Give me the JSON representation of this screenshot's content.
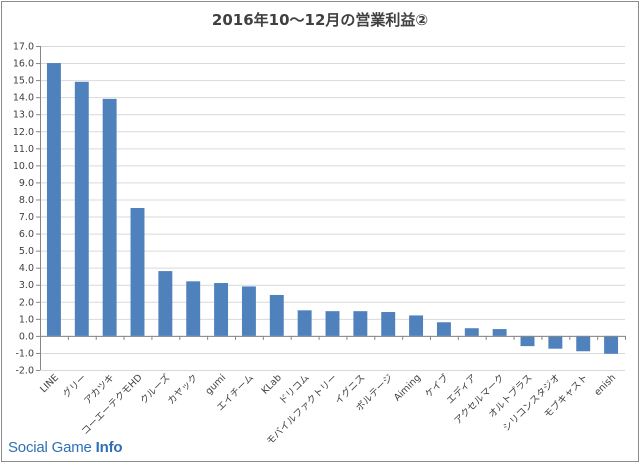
{
  "chart_data": {
    "type": "bar",
    "title": "2016年10〜12月の営業利益②",
    "xlabel": "",
    "ylabel": "",
    "ylim": [
      -2.0,
      17.0
    ],
    "ytick_step": 1.0,
    "grid": true,
    "legend": "none",
    "bar_color": "#4f81bd",
    "categories": [
      "LINE",
      "グリー",
      "アカツキ",
      "コーエーテクモHD",
      "クルーズ",
      "カヤック",
      "gumi",
      "エイチーム",
      "KLab",
      "ドリコム",
      "モバイルファクトリー",
      "イグニス",
      "ボルテージ",
      "Aiming",
      "ケイブ",
      "エディア",
      "アクセルマーク",
      "オルトプラス",
      "シリコンスタジオ",
      "モブキャスト",
      "enish"
    ],
    "values": [
      16.0,
      14.9,
      13.9,
      7.5,
      3.8,
      3.2,
      3.1,
      2.9,
      2.4,
      1.5,
      1.45,
      1.45,
      1.4,
      1.2,
      0.8,
      0.45,
      0.4,
      -0.6,
      -0.75,
      -0.9,
      -1.05
    ]
  },
  "watermark": {
    "text_light": "Social Game ",
    "text_bold": "Info"
  }
}
